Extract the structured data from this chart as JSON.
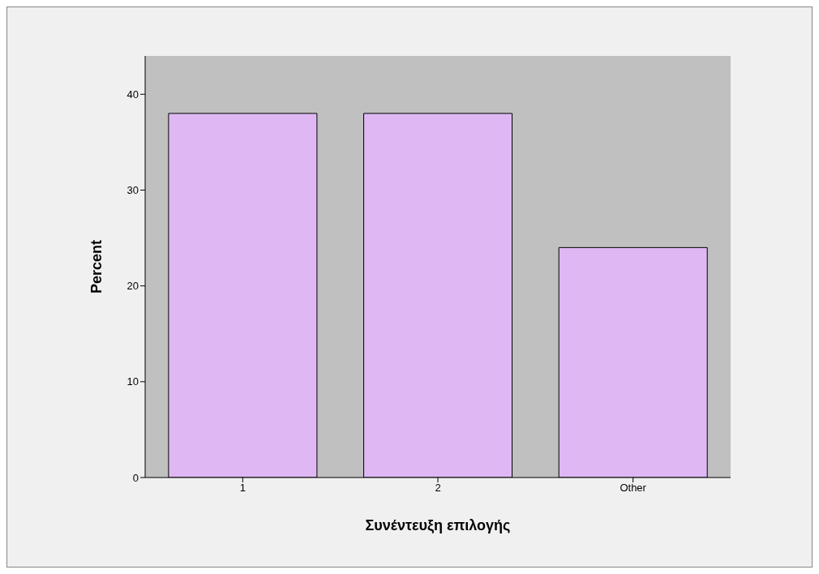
{
  "chart_data": {
    "type": "bar",
    "xlabel": "Συνέντευξη επιλογής",
    "ylabel": "Percent",
    "categories": [
      "1",
      "2",
      "Other"
    ],
    "values": [
      38,
      38,
      24
    ],
    "color": "#dfb8f3",
    "ylim": [
      0,
      44
    ],
    "yticks": [
      0,
      10,
      20,
      30,
      40
    ]
  }
}
